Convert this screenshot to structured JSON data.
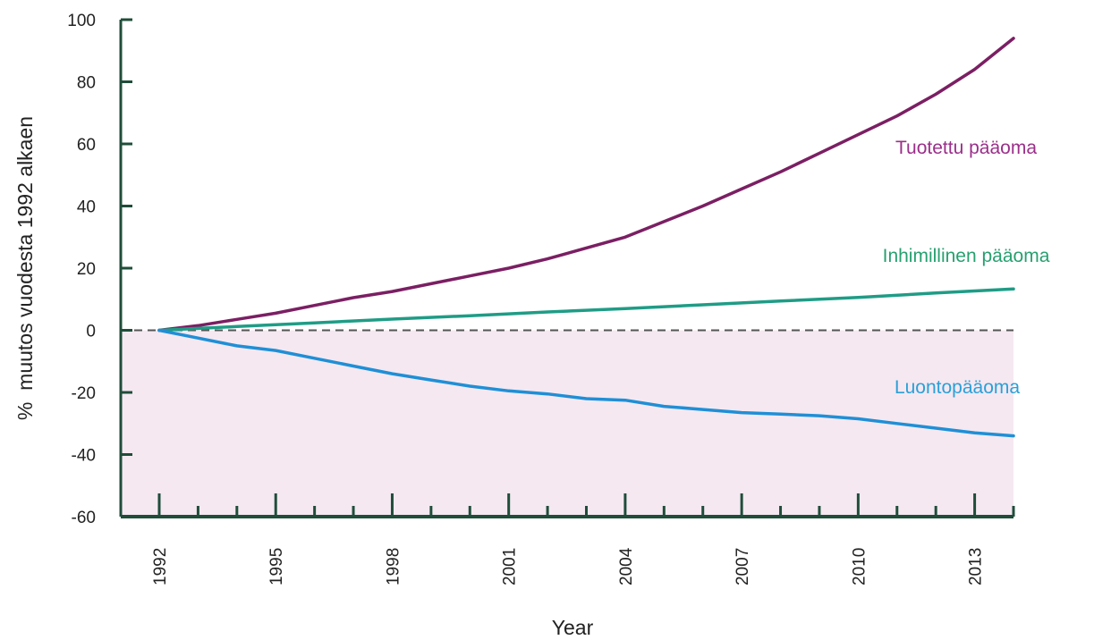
{
  "chart_data": {
    "type": "line",
    "title": "",
    "xlabel": "Year",
    "ylabel": "%  muutos vuodesta 1992 alkaen",
    "xlim": [
      1992,
      2014
    ],
    "ylim": [
      -60,
      100
    ],
    "x_ticks": [
      "1992",
      "1995",
      "1998",
      "2001",
      "2004",
      "2007",
      "2010",
      "2013"
    ],
    "y_ticks": [
      "100",
      "80",
      "60",
      "40",
      "20",
      "0",
      "-20",
      "-40",
      "-60"
    ],
    "baseline": 0,
    "negative_region_color": "#f5e8f1",
    "axis_color": "#1f4d3a",
    "series": [
      {
        "name": "Tuotettu pääoma",
        "color": "#7b1f63",
        "label_color": "#9b2f8a",
        "x": [
          1992,
          1993,
          1994,
          1995,
          1996,
          1997,
          1998,
          1999,
          2000,
          2001,
          2002,
          2003,
          2004,
          2005,
          2006,
          2007,
          2008,
          2009,
          2010,
          2011,
          2012,
          2013,
          2014
        ],
        "y": [
          0,
          1.5,
          3.5,
          5.5,
          8,
          10.5,
          12.5,
          15,
          17.5,
          20,
          23,
          26.5,
          30,
          35,
          40,
          45.5,
          51,
          57,
          63,
          69,
          76,
          84,
          94
        ]
      },
      {
        "name": "Inhimillinen pääoma",
        "color": "#1f9c86",
        "label_color": "#27a070",
        "x": [
          1992,
          1994,
          1996,
          1998,
          2000,
          2002,
          2004,
          2006,
          2008,
          2010,
          2012,
          2014
        ],
        "y": [
          0,
          1.2,
          2.4,
          3.6,
          4.7,
          5.9,
          7,
          8.2,
          9.4,
          10.6,
          12,
          13.3
        ]
      },
      {
        "name": "Luontopääoma",
        "color": "#1f8fd6",
        "label_color": "#2aa0d8",
        "x": [
          1992,
          1993,
          1994,
          1995,
          1996,
          1997,
          1998,
          1999,
          2000,
          2001,
          2002,
          2003,
          2004,
          2005,
          2006,
          2007,
          2008,
          2009,
          2010,
          2011,
          2012,
          2013,
          2014
        ],
        "y": [
          0,
          -2.5,
          -5,
          -6.5,
          -9,
          -11.5,
          -14,
          -16,
          -18,
          -19.5,
          -20.5,
          -22,
          -22.5,
          -24.5,
          -25.5,
          -26.5,
          -27,
          -27.5,
          -28.5,
          -30,
          -31.5,
          -33,
          -34
        ]
      }
    ]
  }
}
